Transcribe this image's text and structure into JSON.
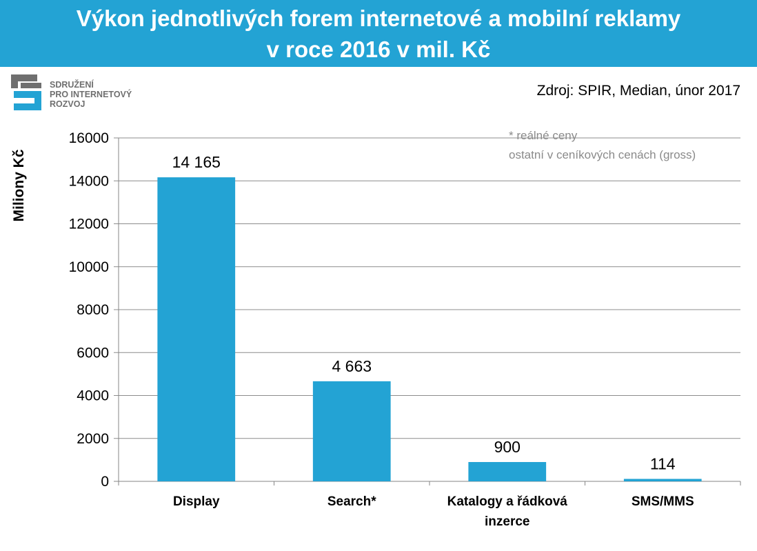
{
  "header": {
    "title_line1": "Výkon jednotlivých forem internetové a mobilní reklamy",
    "title_line2": "v roce 2016 v mil. Kč",
    "color": "#23a3d4"
  },
  "logo": {
    "lines": [
      "SDRUŽENÍ",
      "PRO INTERNETOVÝ",
      "ROZVOJ"
    ],
    "icon": "spir-logo-icon",
    "colors": {
      "gray": "#6f6f6f",
      "blue": "#23a3d4"
    }
  },
  "source": "Zdroj: SPIR, Median, únor 2017",
  "note": {
    "line1": "* reálné ceny",
    "line2": "ostatní v ceníkových cenách (gross)"
  },
  "chart_data": {
    "type": "bar",
    "title": "Výkon jednotlivých forem internetové a mobilní reklamy v roce 2016 v mil. Kč",
    "ylabel": "Miliony Kč",
    "xlabel": "",
    "categories": [
      [
        "Display"
      ],
      [
        "Search*"
      ],
      [
        "Katalogy a řádková",
        "inzerce"
      ],
      [
        "SMS/MMS"
      ]
    ],
    "values": [
      14165,
      4663,
      900,
      114
    ],
    "data_labels": [
      "14 165",
      "4 663",
      "900",
      "114"
    ],
    "ylim": [
      0,
      16000
    ],
    "yticks": [
      0,
      2000,
      4000,
      6000,
      8000,
      10000,
      12000,
      14000,
      16000
    ],
    "grid": true,
    "legend": "none",
    "bar_color": "#23a3d4"
  }
}
